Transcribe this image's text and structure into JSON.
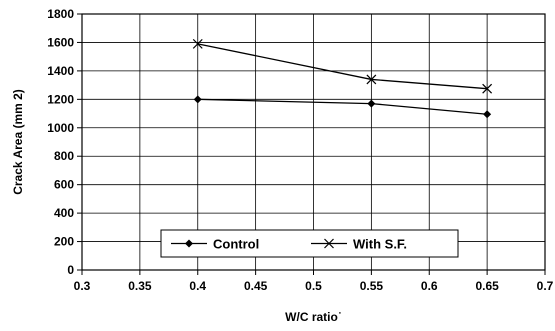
{
  "chart_data": {
    "type": "line",
    "title": "",
    "xlabel": "W/C ratio˙",
    "ylabel": "Crack Area  (mm 2)",
    "xlim": [
      0.3,
      0.7
    ],
    "ylim": [
      0,
      1800
    ],
    "x_ticks": [
      "0.3",
      "0.35",
      "0.4",
      "0.45",
      "0.5",
      "0.55",
      "0.6",
      "0.65",
      "0.7"
    ],
    "y_ticks": [
      "0",
      "200",
      "400",
      "600",
      "800",
      "1000",
      "1200",
      "1400",
      "1600",
      "1800"
    ],
    "grid": true,
    "legend_position": "bottom-center",
    "series": [
      {
        "name": "Control",
        "marker": "diamond",
        "color": "#000000",
        "x": [
          0.4,
          0.55,
          0.65
        ],
        "y": [
          1200,
          1170,
          1095
        ]
      },
      {
        "name": "With S.F.",
        "marker": "x",
        "color": "#000000",
        "x": [
          0.4,
          0.55,
          0.65
        ],
        "y": [
          1590,
          1340,
          1275
        ]
      }
    ]
  }
}
